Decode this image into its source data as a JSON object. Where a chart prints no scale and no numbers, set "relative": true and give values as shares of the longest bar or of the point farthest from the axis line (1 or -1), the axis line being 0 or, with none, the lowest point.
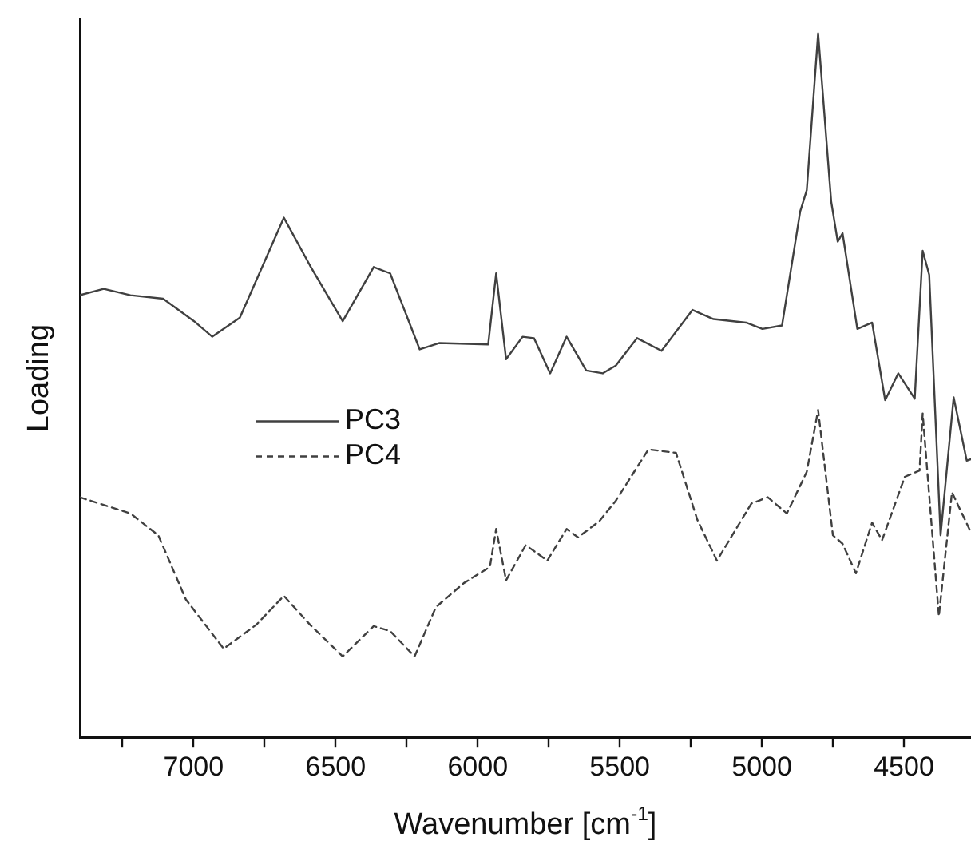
{
  "chart_data": {
    "type": "line",
    "xlabel": "Wavenumber [cm$^{-1}$]",
    "ylabel": "Loading",
    "relative": true,
    "marker": "none",
    "grid": false,
    "legend": "left",
    "xlim": [
      7400,
      4264
    ],
    "xticks": [
      7000,
      6500,
      6000,
      5500,
      5000,
      4500,
      {
        "value": 7250,
        "label": null
      },
      {
        "value": 6750,
        "label": null
      },
      {
        "value": 6250,
        "label": null
      },
      {
        "value": 5750,
        "label": null
      },
      {
        "value": 5250,
        "label": null
      },
      {
        "value": 4750,
        "label": null
      }
    ],
    "series": [
      {
        "name": "PC3",
        "color": "#404040",
        "line_style": "solid",
        "x": [
          7400,
          7316,
          7222,
          7107,
          6998,
          6934,
          6837,
          6682,
          6590,
          6475,
          6366,
          6308,
          6204,
          6136,
          5963,
          5935,
          5900,
          5842,
          5802,
          5745,
          5687,
          5618,
          5560,
          5514,
          5439,
          5353,
          5244,
          5170,
          5055,
          4998,
          4929,
          4865,
          4842,
          4802,
          4756,
          4733,
          4716,
          4664,
          4612,
          4566,
          4520,
          4462,
          4434,
          4411,
          4371,
          4325,
          4279,
          4264
        ],
        "values": [
          0.628,
          0.637,
          0.628,
          0.623,
          0.591,
          0.569,
          0.596,
          0.738,
          0.67,
          0.591,
          0.668,
          0.659,
          0.551,
          0.56,
          0.558,
          0.659,
          0.537,
          0.569,
          0.567,
          0.517,
          0.569,
          0.521,
          0.517,
          0.528,
          0.567,
          0.549,
          0.607,
          0.594,
          0.589,
          0.58,
          0.585,
          0.747,
          0.777,
          1,
          0.761,
          0.704,
          0.716,
          0.58,
          0.589,
          0.479,
          0.517,
          0.481,
          0.691,
          0.657,
          0.287,
          0.483,
          0.393,
          0.395
        ]
      },
      {
        "name": "PC4",
        "color": "#404040",
        "line_style": "dashed",
        "x": [
          7400,
          7222,
          7124,
          7027,
          6894,
          6779,
          6682,
          6590,
          6475,
          6366,
          6308,
          6222,
          6147,
          6049,
          5957,
          5935,
          5900,
          5831,
          5755,
          5687,
          5647,
          5572,
          5514,
          5399,
          5302,
          5227,
          5158,
          5037,
          4979,
          4912,
          4842,
          4802,
          4750,
          4716,
          4669,
          4612,
          4577,
          4497,
          4445,
          4434,
          4377,
          4331,
          4264
        ],
        "values": [
          0.341,
          0.318,
          0.287,
          0.196,
          0.126,
          0.16,
          0.201,
          0.16,
          0.115,
          0.158,
          0.151,
          0.115,
          0.185,
          0.219,
          0.242,
          0.296,
          0.223,
          0.273,
          0.251,
          0.296,
          0.284,
          0.307,
          0.336,
          0.409,
          0.404,
          0.309,
          0.251,
          0.332,
          0.341,
          0.318,
          0.377,
          0.465,
          0.287,
          0.275,
          0.233,
          0.305,
          0.28,
          0.37,
          0.379,
          0.46,
          0.172,
          0.348,
          0.291
        ]
      }
    ]
  }
}
